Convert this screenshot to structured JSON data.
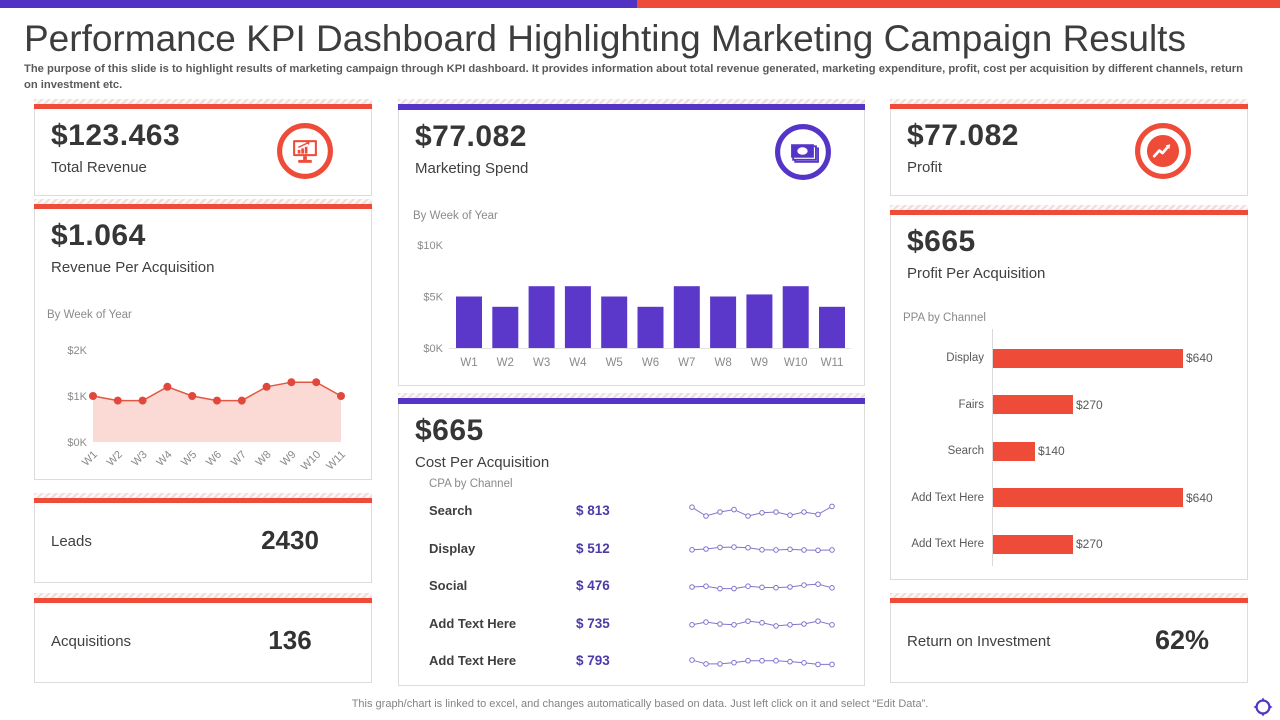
{
  "colors": {
    "accent_red": "#EE4B39",
    "accent_purple": "#5435C8",
    "topbar_purple": "#5232C4",
    "cpa_value_text": "#4B3AA8",
    "area_fill": "#FBD9D4"
  },
  "header": {
    "title": "Performance KPI Dashboard Highlighting Marketing Campaign Results",
    "subtitle": "The purpose of this slide is to highlight results of marketing campaign through KPI dashboard. It provides information about total revenue generated, marketing expenditure, profit, cost per acquisition by different channels, return on investment etc."
  },
  "left": {
    "total_revenue": {
      "value": "$123.463",
      "label": "Total Revenue",
      "icon": "monitor-chart-icon"
    },
    "rpa": {
      "value": "$1.064",
      "label": "Revenue Per Acquisition",
      "chart_label": "By Week of Year"
    },
    "leads": {
      "label": "Leads",
      "value": "2430"
    },
    "acquisitions": {
      "label": "Acquisitions",
      "value": "136"
    }
  },
  "middle": {
    "spend": {
      "value": "$77.082",
      "label": "Marketing Spend",
      "chart_label": "By Week of Year",
      "icon": "banknotes-icon"
    },
    "cpa": {
      "value": "$665",
      "label": "Cost Per Acquisition",
      "table_label": "CPA by Channel",
      "rows": [
        {
          "channel": "Search",
          "amount": "$ 813"
        },
        {
          "channel": "Display",
          "amount": "$ 512"
        },
        {
          "channel": "Social",
          "amount": "$ 476"
        },
        {
          "channel": "Add Text Here",
          "amount": "$ 735"
        },
        {
          "channel": "Add Text Here",
          "amount": "$ 793"
        }
      ]
    }
  },
  "right": {
    "profit": {
      "value": "$77.082",
      "label": "Profit",
      "icon": "trend-up-arrow-icon"
    },
    "ppa": {
      "value": "$665",
      "label": "Profit Per Acquisition",
      "chart_label": "PPA by Channel"
    },
    "roi": {
      "label": "Return on Investment",
      "value": "62%"
    }
  },
  "footer": {
    "note": "This graph/chart is linked to excel,  and changes automatically based on data. Just left click on it and select “Edit Data”.",
    "logo_icon": "compass-logo-icon"
  },
  "chart_data": [
    {
      "type": "area",
      "title": "Revenue Per Acquisition",
      "subtitle": "By Week of Year",
      "categories": [
        "W1",
        "W2",
        "W3",
        "W4",
        "W5",
        "W6",
        "W7",
        "W8",
        "W9",
        "W10",
        "W11"
      ],
      "values": [
        1.0,
        0.9,
        0.9,
        1.2,
        1.0,
        0.9,
        0.9,
        1.2,
        1.3,
        1.3,
        1.0
      ],
      "unit": "$K",
      "ylim": [
        0,
        2
      ],
      "ytick_values": [
        2,
        1,
        0
      ],
      "ytick_labels": [
        "$2K",
        "$1K",
        "$0K"
      ],
      "fill_color": "#FBD9D4",
      "line_color": "#E25742",
      "marker_color": "#E0483B",
      "grid": false
    },
    {
      "type": "bar",
      "title": "Marketing Spend",
      "subtitle": "By Week of Year",
      "categories": [
        "W1",
        "W2",
        "W3",
        "W4",
        "W5",
        "W6",
        "W7",
        "W8",
        "W9",
        "W10",
        "W11"
      ],
      "values": [
        5,
        4,
        6,
        6,
        5,
        4,
        6,
        5,
        5.2,
        6,
        4
      ],
      "unit": "$K",
      "ylim": [
        0,
        10
      ],
      "ytick_values": [
        10,
        5,
        0
      ],
      "ytick_labels": [
        "$10K",
        "$5K",
        "$0K"
      ],
      "bar_color": "#5B38C9",
      "grid": false
    },
    {
      "type": "line",
      "title": "CPA by Channel sparklines",
      "color": "#8274CB",
      "series": [
        {
          "name": "Search",
          "values": [
            0.8,
            0.25,
            0.5,
            0.65,
            0.25,
            0.45,
            0.5,
            0.3,
            0.5,
            0.35,
            0.85
          ]
        },
        {
          "name": "Display",
          "values": [
            0.45,
            0.5,
            0.6,
            0.62,
            0.58,
            0.45,
            0.44,
            0.48,
            0.44,
            0.42,
            0.44
          ]
        },
        {
          "name": "Social",
          "values": [
            0.5,
            0.55,
            0.4,
            0.4,
            0.55,
            0.48,
            0.46,
            0.5,
            0.62,
            0.68,
            0.45
          ]
        },
        {
          "name": "Add Text Here",
          "values": [
            0.45,
            0.62,
            0.5,
            0.45,
            0.68,
            0.58,
            0.38,
            0.45,
            0.5,
            0.68,
            0.45
          ]
        },
        {
          "name": "Add Text Here",
          "values": [
            0.62,
            0.38,
            0.38,
            0.46,
            0.58,
            0.58,
            0.58,
            0.52,
            0.45,
            0.35,
            0.35
          ]
        }
      ]
    },
    {
      "type": "bar",
      "orientation": "horizontal",
      "title": "PPA by Channel",
      "categories": [
        "Display",
        "Fairs",
        "Search",
        "Add Text Here",
        "Add Text Here"
      ],
      "values": [
        640,
        270,
        140,
        640,
        270
      ],
      "value_labels": [
        "$640",
        "$270",
        "$140",
        "$640",
        "$270"
      ],
      "xlim": [
        0,
        700
      ],
      "bar_color": "#EE4B39",
      "grid": false
    }
  ]
}
